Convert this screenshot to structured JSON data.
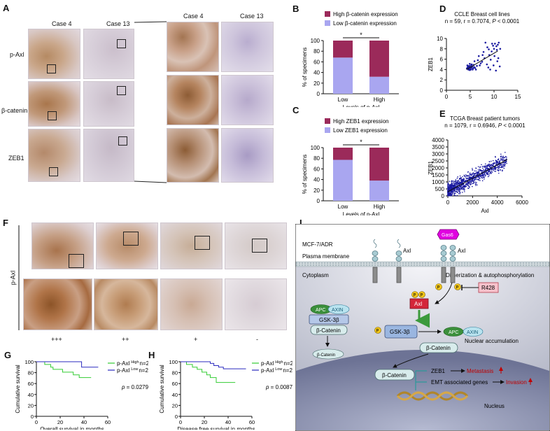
{
  "panels": {
    "A": {
      "letter": "A",
      "col_labels_low": [
        "Case 4",
        "Case 13"
      ],
      "col_labels_high": [
        "Case 4",
        "Case 13"
      ],
      "row_labels": [
        "p-Axl",
        "β-catenin",
        "ZEB1"
      ]
    },
    "F": {
      "letter": "F",
      "row_label": "p-Axl",
      "scores": [
        "+++",
        "++",
        "+",
        "-"
      ]
    },
    "I": {
      "letter": "I",
      "cell_line": "MCF-7/ADR",
      "plasma_membrane": "Plasma membrane",
      "cytoplasm": "Cytoplasm",
      "nucleus": "Nucleus",
      "dimerization": "Dimerization & autophosphorylation",
      "nuclear_accumulation": "Nuclear accumulation",
      "axl_label": "Axl",
      "axl_label2": "Axl",
      "gas6": "Gas6",
      "r428": "R428",
      "axl_inner": "Axl",
      "apc": "APC",
      "axin": "AXIN",
      "gsk": "GSK-3β",
      "bcat": "β-Catenin",
      "apc2": "APC",
      "axin2": "AXIN",
      "gsk2": "GSK-3β",
      "bcat2": "β-Catenin",
      "bcat_degraded": "β-Catenin",
      "bcat_nuc": "β-Catenin",
      "zeb1": "ZEB1",
      "emt": "EMT associated genes",
      "metastasis": "Metastasis",
      "invasion": "Invasion",
      "p": "P"
    }
  },
  "chart_data": [
    {
      "id": "B",
      "type": "bar",
      "stacked": true,
      "letter": "B",
      "categories": [
        "Low",
        "High"
      ],
      "xlabel": "Levels of p-Axl",
      "ylabel": "% of specimens",
      "ylim": [
        0,
        100
      ],
      "yticks": [
        0,
        20,
        40,
        60,
        80,
        100
      ],
      "series": [
        {
          "name": "Low β-catenin expression",
          "color": "#a9a6f0",
          "values": [
            68,
            32
          ]
        },
        {
          "name": "High β-catenin expression",
          "color": "#9b2a5a",
          "values": [
            32,
            68
          ]
        }
      ],
      "significance": "*"
    },
    {
      "id": "C",
      "type": "bar",
      "stacked": true,
      "letter": "C",
      "categories": [
        "Low",
        "High"
      ],
      "xlabel": "Levels of p-Axl",
      "ylabel": "% of specimens",
      "ylim": [
        0,
        100
      ],
      "yticks": [
        0,
        20,
        40,
        60,
        80,
        100
      ],
      "series": [
        {
          "name": "Low ZEB1 expression",
          "color": "#a9a6f0",
          "values": [
            77,
            38
          ]
        },
        {
          "name": "High ZEB1 expression",
          "color": "#9b2a5a",
          "values": [
            23,
            62
          ]
        }
      ],
      "significance": "*"
    },
    {
      "id": "D",
      "type": "scatter",
      "letter": "D",
      "title": "CCLE Breast cell lines",
      "subtitle_pre": "n = 59, r = 0.7074, ",
      "subtitle_p": "P",
      "subtitle_post": " < 0.0001",
      "xlabel": "Axl",
      "ylabel": "ZEB1",
      "xlim": [
        0,
        15
      ],
      "ylim": [
        0,
        10
      ],
      "xticks": [
        0,
        5,
        10,
        15
      ],
      "yticks": [
        0,
        2,
        4,
        6,
        8,
        10
      ],
      "color": "#1a1aa0",
      "fit": [
        [
          4.2,
          4.0
        ],
        [
          10.8,
          7.6
        ]
      ],
      "points": [
        [
          4.3,
          4.2
        ],
        [
          4.6,
          4.0
        ],
        [
          4.8,
          4.4
        ],
        [
          5.0,
          4.1
        ],
        [
          4.5,
          4.5
        ],
        [
          5.2,
          4.3
        ],
        [
          4.9,
          3.9
        ],
        [
          5.4,
          4.6
        ],
        [
          4.7,
          4.2
        ],
        [
          5.1,
          4.0
        ],
        [
          4.4,
          4.3
        ],
        [
          5.3,
          4.4
        ],
        [
          5.6,
          4.2
        ],
        [
          4.8,
          4.7
        ],
        [
          5.0,
          4.5
        ],
        [
          5.5,
          4.0
        ],
        [
          6.0,
          4.3
        ],
        [
          4.6,
          4.6
        ],
        [
          5.8,
          4.5
        ],
        [
          5.2,
          4.8
        ],
        [
          6.2,
          4.0
        ],
        [
          7.0,
          4.8
        ],
        [
          7.5,
          5.5
        ],
        [
          8.0,
          6.2
        ],
        [
          8.5,
          5.0
        ],
        [
          9.0,
          6.8
        ],
        [
          9.5,
          7.5
        ],
        [
          10.0,
          8.0
        ],
        [
          10.5,
          8.5
        ],
        [
          10.2,
          9.0
        ],
        [
          10.8,
          8.8
        ],
        [
          11.0,
          9.2
        ],
        [
          9.8,
          8.6
        ],
        [
          10.6,
          7.8
        ],
        [
          8.8,
          4.4
        ],
        [
          9.2,
          4.0
        ],
        [
          10.4,
          3.8
        ],
        [
          11.2,
          4.6
        ],
        [
          7.8,
          7.4
        ],
        [
          8.2,
          9.2
        ],
        [
          9.6,
          9.0
        ],
        [
          10.9,
          6.2
        ],
        [
          6.8,
          6.6
        ],
        [
          7.2,
          5.2
        ],
        [
          5.9,
          5.6
        ],
        [
          8.6,
          8.3
        ],
        [
          9.9,
          4.8
        ],
        [
          10.7,
          5.6
        ],
        [
          11.3,
          8.0
        ],
        [
          6.4,
          4.7
        ],
        [
          5.7,
          4.9
        ],
        [
          4.9,
          5.1
        ],
        [
          5.3,
          5.0
        ],
        [
          6.6,
          5.8
        ],
        [
          7.6,
          6.8
        ],
        [
          8.9,
          7.9
        ],
        [
          9.3,
          5.9
        ],
        [
          10.1,
          6.6
        ],
        [
          4.4,
          4.8
        ]
      ]
    },
    {
      "id": "E",
      "type": "scatter",
      "letter": "E",
      "title": "TCGA Breast patient tumors",
      "subtitle_pre": "n = 1079, r = 0.6946, ",
      "subtitle_p": "P",
      "subtitle_post": " < 0.0001",
      "xlabel": "Axl",
      "ylabel": "ZEB1",
      "xlim": [
        0,
        6000
      ],
      "ylim": [
        0,
        4000
      ],
      "xticks": [
        0,
        2000,
        4000,
        6000
      ],
      "yticks": [
        0,
        500,
        1000,
        1500,
        2000,
        2500,
        3000,
        3500,
        4000
      ],
      "color": "#1a1aa0",
      "fit": [
        [
          0,
          300
        ],
        [
          4800,
          2600
        ]
      ],
      "point_count": 1079
    },
    {
      "id": "G",
      "type": "line",
      "step": true,
      "letter": "G",
      "xlabel": "Overall survival in months",
      "ylabel": "Cumulative survival",
      "xlim": [
        0,
        60
      ],
      "ylim": [
        0,
        100
      ],
      "xticks": [
        0,
        20,
        40,
        60
      ],
      "yticks": [
        0,
        20,
        40,
        60,
        80,
        100
      ],
      "p_label": "p",
      "p_value": " = 0.0279",
      "series": [
        {
          "name": "p-Axl",
          "sup": "High",
          "n_label": "n=21",
          "color": "#33cc33",
          "x": [
            0,
            7,
            12,
            14,
            19,
            22,
            25,
            28,
            31,
            34,
            36,
            38,
            40,
            46
          ],
          "y": [
            100,
            95,
            90,
            86,
            86,
            81,
            81,
            81,
            76,
            76,
            71,
            71,
            71,
            71
          ]
        },
        {
          "name": "p-Axl",
          "sup": "Low",
          "n_label": "n=29",
          "color": "#2b2bbf",
          "x": [
            0,
            36,
            38,
            52
          ],
          "y": [
            100,
            100,
            90,
            90
          ]
        }
      ]
    },
    {
      "id": "H",
      "type": "line",
      "step": true,
      "letter": "H",
      "xlabel": "Disease free survival in months",
      "ylabel": "Cumulative survival",
      "xlim": [
        0,
        60
      ],
      "ylim": [
        0,
        100
      ],
      "xticks": [
        0,
        20,
        40,
        60
      ],
      "yticks": [
        0,
        20,
        40,
        60,
        80,
        100
      ],
      "p_label": "p",
      "p_value": " = 0.0087",
      "series": [
        {
          "name": "p-Axl",
          "sup": "High",
          "n_label": "n=21",
          "color": "#33cc33",
          "x": [
            0,
            5,
            10,
            14,
            18,
            22,
            25,
            30,
            46
          ],
          "y": [
            100,
            95,
            90,
            86,
            81,
            76,
            71,
            62,
            62
          ]
        },
        {
          "name": "p-Axl",
          "sup": "Low",
          "n_label": "n=29",
          "color": "#2b2bbf",
          "x": [
            0,
            25,
            28,
            32,
            36,
            55
          ],
          "y": [
            100,
            97,
            93,
            90,
            87,
            87
          ]
        }
      ]
    }
  ]
}
